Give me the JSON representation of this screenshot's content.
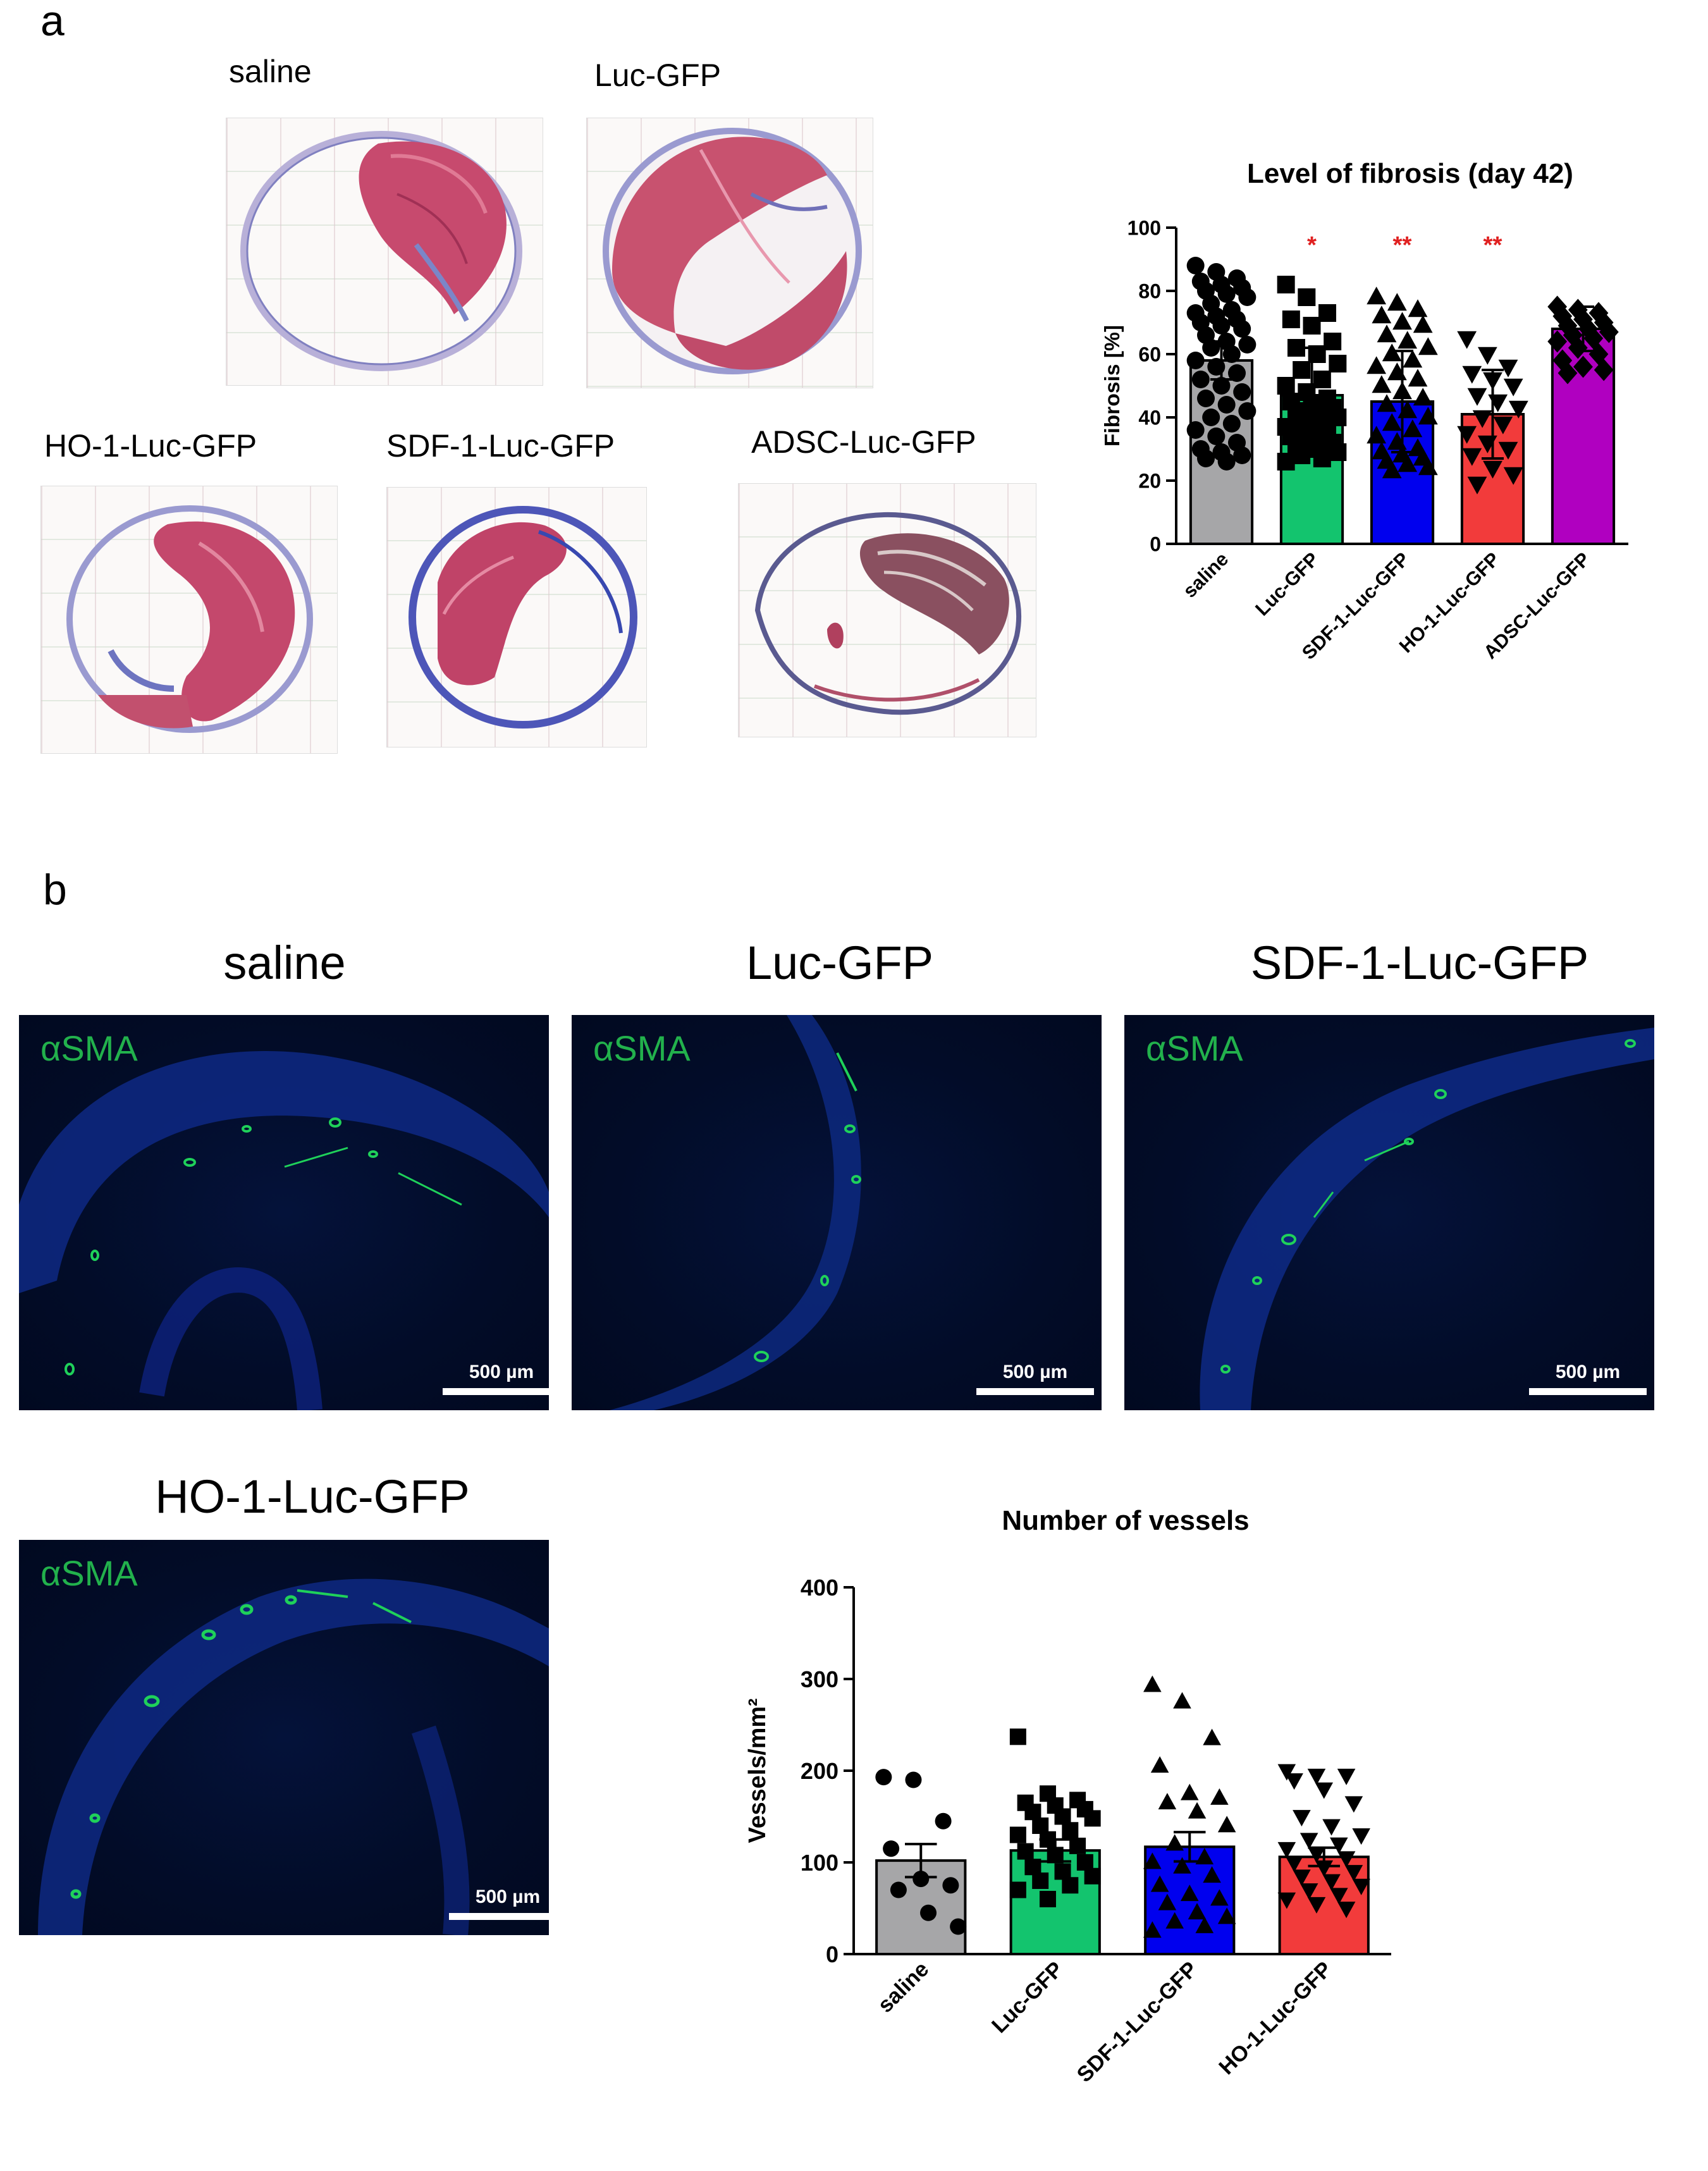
{
  "panel_a": {
    "letter": "a",
    "images": [
      {
        "label": "saline"
      },
      {
        "label": "Luc-GFP"
      },
      {
        "label": "HO-1-Luc-GFP"
      },
      {
        "label": "SDF-1-Luc-GFP"
      },
      {
        "label": "ADSC-Luc-GFP"
      }
    ]
  },
  "panel_b": {
    "letter": "b",
    "images": [
      {
        "label": "saline",
        "stain": "αSMA",
        "scale": "500 µm"
      },
      {
        "label": "Luc-GFP",
        "stain": "αSMA",
        "scale": "500 µm"
      },
      {
        "label": "SDF-1-Luc-GFP",
        "stain": "αSMA",
        "scale": "500 µm"
      },
      {
        "label": "HO-1-Luc-GFP",
        "stain": "αSMA",
        "scale": "500 µm"
      }
    ]
  },
  "chart_data": [
    {
      "type": "bar",
      "title": "Level of fibrosis (day 42)",
      "ylabel": "Fibrosis [%]",
      "xlabel": "",
      "ylim": [
        0,
        100
      ],
      "yticks": [
        0,
        20,
        40,
        60,
        80,
        100
      ],
      "categories": [
        "saline",
        "Luc-GFP",
        "SDF-1-Luc-GFP",
        "HO-1-Luc-GFP",
        "ADSC-Luc-GFP"
      ],
      "values": [
        58,
        47,
        45,
        41,
        68
      ],
      "errors": [
        6,
        15,
        16,
        14,
        7
      ],
      "significance": [
        "",
        "*",
        "**",
        "**",
        ""
      ],
      "significance_color": "#e02020",
      "colors": [
        "#a6a6a8",
        "#13c46e",
        "#0000ee",
        "#f23b3b",
        "#b000c0"
      ],
      "markers": [
        "circle",
        "square",
        "triangle-up",
        "triangle-down",
        "diamond"
      ],
      "points": [
        [
          88,
          86,
          84,
          83,
          82,
          81,
          80,
          79,
          78,
          76,
          74,
          73,
          72,
          71,
          70,
          69,
          68,
          66,
          64,
          63,
          62,
          60,
          58,
          56,
          54,
          52,
          50,
          48,
          46,
          44,
          42,
          40,
          38,
          36,
          34,
          32,
          30,
          29,
          28,
          27,
          26
        ],
        [
          82,
          78,
          73,
          71,
          69,
          64,
          62,
          60,
          57,
          55,
          52,
          50,
          48,
          46,
          45,
          44,
          43,
          42,
          41,
          40,
          39,
          38,
          37,
          36,
          35,
          34,
          33,
          32,
          31,
          30,
          29,
          28,
          27,
          26
        ],
        [
          78,
          76,
          74,
          72,
          70,
          69,
          66,
          64,
          62,
          60,
          58,
          56,
          54,
          52,
          50,
          48,
          46,
          44,
          42,
          40,
          38,
          36,
          34,
          32,
          30,
          29,
          28,
          27,
          26,
          25,
          24,
          23
        ],
        [
          65,
          60,
          56,
          54,
          52,
          50,
          47,
          45,
          43,
          40,
          38,
          35,
          32,
          30,
          28,
          24,
          22,
          19
        ],
        [
          75,
          74,
          73,
          72,
          71,
          70,
          69,
          68,
          67,
          66,
          65,
          64,
          62,
          60,
          58,
          56,
          55,
          54
        ]
      ]
    },
    {
      "type": "bar",
      "title": "Number of vessels",
      "ylabel": "Vessels/mm²",
      "xlabel": "",
      "ylim": [
        0,
        400
      ],
      "yticks": [
        0,
        100,
        200,
        300,
        400
      ],
      "categories": [
        "saline",
        "Luc-GFP",
        "SDF-1-Luc-GFP",
        "HO-1-Luc-GFP"
      ],
      "values": [
        102,
        113,
        117,
        106
      ],
      "errors": [
        18,
        12,
        16,
        10
      ],
      "colors": [
        "#a6a6a8",
        "#13c46e",
        "#0000ee",
        "#f23b3b"
      ],
      "markers": [
        "circle",
        "square",
        "triangle-up",
        "triangle-down"
      ],
      "points": [
        [
          193,
          190,
          145,
          115,
          82,
          75,
          70,
          45,
          30
        ],
        [
          237,
          175,
          168,
          165,
          162,
          158,
          155,
          150,
          148,
          140,
          135,
          130,
          125,
          118,
          112,
          108,
          100,
          95,
          90,
          85,
          80,
          75,
          70,
          60
        ],
        [
          293,
          275,
          235,
          205,
          175,
          170,
          165,
          155,
          140,
          120,
          105,
          100,
          95,
          85,
          75,
          65,
          60,
          55,
          45,
          40,
          35,
          30,
          25
        ],
        [
          200,
          195,
          195,
          190,
          180,
          165,
          150,
          140,
          130,
          125,
          120,
          115,
          110,
          105,
          100,
          95,
          90,
          85,
          80,
          75,
          70,
          65,
          60,
          55,
          50
        ]
      ]
    }
  ]
}
